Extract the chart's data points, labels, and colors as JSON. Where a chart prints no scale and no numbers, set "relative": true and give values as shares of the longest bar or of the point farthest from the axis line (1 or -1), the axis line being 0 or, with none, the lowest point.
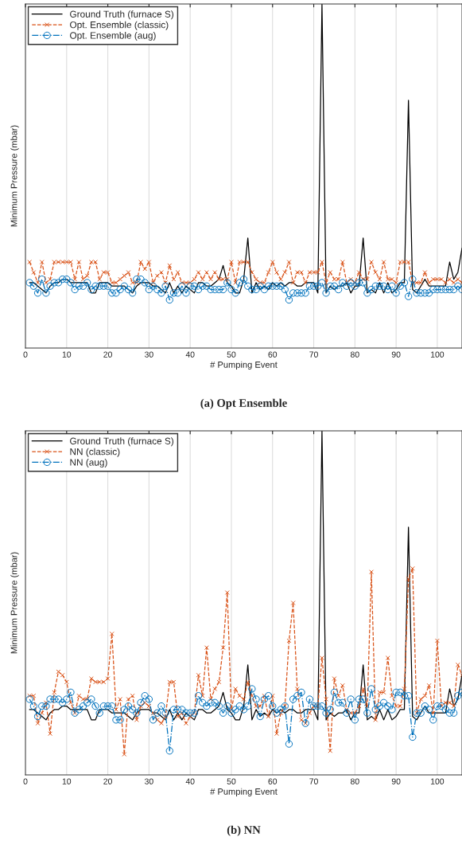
{
  "chart_data": [
    {
      "type": "line",
      "title": "(a) Opt Ensemble",
      "xlabel": "# Pumping Event",
      "ylabel": "Minimum Pressure (mbar)",
      "relative": true,
      "grid": "x",
      "legend": "top left",
      "xlim": [
        0,
        106
      ],
      "xticks": [
        0,
        10,
        20,
        30,
        40,
        50,
        60,
        70,
        80,
        90,
        100
      ],
      "x": [
        1,
        2,
        3,
        4,
        5,
        6,
        7,
        8,
        9,
        10,
        11,
        12,
        13,
        14,
        15,
        16,
        17,
        18,
        19,
        20,
        21,
        22,
        23,
        24,
        25,
        26,
        27,
        28,
        29,
        30,
        31,
        32,
        33,
        34,
        35,
        36,
        37,
        38,
        39,
        40,
        41,
        42,
        43,
        44,
        45,
        46,
        47,
        48,
        49,
        50,
        51,
        52,
        53,
        54,
        55,
        56,
        57,
        58,
        59,
        60,
        61,
        62,
        63,
        64,
        65,
        66,
        67,
        68,
        69,
        70,
        71,
        72,
        73,
        74,
        75,
        76,
        77,
        78,
        79,
        80,
        81,
        82,
        83,
        84,
        85,
        86,
        87,
        88,
        89,
        90,
        91,
        92,
        93,
        94,
        95,
        96,
        97,
        98,
        99,
        100,
        101,
        102,
        103,
        104,
        105,
        106
      ],
      "series": [
        {
          "name": "Ground Truth (furnace S)",
          "color": "#000000",
          "marker": "none",
          "line_style": "solid",
          "values": [
            0.19,
            0.19,
            0.18,
            0.17,
            0.16,
            0.18,
            0.19,
            0.19,
            0.2,
            0.2,
            0.19,
            0.19,
            0.19,
            0.19,
            0.19,
            0.16,
            0.16,
            0.19,
            0.19,
            0.19,
            0.18,
            0.18,
            0.18,
            0.18,
            0.17,
            0.16,
            0.18,
            0.19,
            0.19,
            0.19,
            0.18,
            0.18,
            0.17,
            0.16,
            0.19,
            0.16,
            0.18,
            0.16,
            0.18,
            0.17,
            0.16,
            0.19,
            0.19,
            0.18,
            0.18,
            0.19,
            0.2,
            0.24,
            0.19,
            0.18,
            0.16,
            0.16,
            0.2,
            0.32,
            0.16,
            0.19,
            0.17,
            0.18,
            0.17,
            0.19,
            0.18,
            0.19,
            0.18,
            0.19,
            0.19,
            0.18,
            0.18,
            0.19,
            0.19,
            0.19,
            0.16,
            1,
            0.16,
            0.18,
            0.17,
            0.18,
            0.18,
            0.19,
            0.16,
            0.18,
            0.18,
            0.32,
            0.16,
            0.17,
            0.16,
            0.19,
            0.16,
            0.19,
            0.16,
            0.17,
            0.19,
            0.19,
            0.72,
            0.17,
            0.16,
            0.18,
            0.2,
            0.18,
            0.18,
            0.18,
            0.18,
            0.18,
            0.25,
            0.2,
            0.22,
            0.29
          ]
        },
        {
          "name": "Opt. Ensemble (classic)",
          "color": "#d95319",
          "marker": "cross",
          "line_style": "dashed",
          "values": [
            0.25,
            0.22,
            0.19,
            0.25,
            0.19,
            0.2,
            0.25,
            0.25,
            0.25,
            0.25,
            0.25,
            0.2,
            0.25,
            0.2,
            0.21,
            0.25,
            0.25,
            0.2,
            0.22,
            0.22,
            0.19,
            0.19,
            0.2,
            0.21,
            0.22,
            0.19,
            0.19,
            0.25,
            0.23,
            0.25,
            0.19,
            0.21,
            0.22,
            0.19,
            0.24,
            0.2,
            0.22,
            0.19,
            0.19,
            0.19,
            0.2,
            0.22,
            0.2,
            0.22,
            0.2,
            0.22,
            0.2,
            0.2,
            0.2,
            0.25,
            0.19,
            0.25,
            0.25,
            0.25,
            0.22,
            0.2,
            0.19,
            0.19,
            0.22,
            0.25,
            0.22,
            0.2,
            0.22,
            0.25,
            0.19,
            0.22,
            0.22,
            0.19,
            0.22,
            0.22,
            0.22,
            0.25,
            0.19,
            0.22,
            0.2,
            0.2,
            0.25,
            0.19,
            0.2,
            0.19,
            0.22,
            0.2,
            0.2,
            0.25,
            0.22,
            0.2,
            0.25,
            0.2,
            0.2,
            0.19,
            0.25,
            0.25,
            0.25,
            0.19,
            0.19,
            0.19,
            0.22,
            0.19,
            0.2,
            0.2,
            0.2,
            0.19,
            0.2,
            0.19,
            0.2,
            0.19
          ]
        },
        {
          "name": "Opt. Ensemble (aug)",
          "color": "#0072bd",
          "marker": "circle",
          "line_style": "dashdot",
          "values": [
            0.19,
            0.18,
            0.16,
            0.2,
            0.16,
            0.18,
            0.19,
            0.19,
            0.2,
            0.2,
            0.19,
            0.17,
            0.18,
            0.18,
            0.19,
            0.17,
            0.18,
            0.18,
            0.18,
            0.18,
            0.16,
            0.16,
            0.17,
            0.18,
            0.17,
            0.16,
            0.2,
            0.2,
            0.19,
            0.17,
            0.18,
            0.17,
            0.16,
            0.18,
            0.14,
            0.16,
            0.16,
            0.18,
            0.16,
            0.18,
            0.18,
            0.17,
            0.18,
            0.18,
            0.17,
            0.17,
            0.17,
            0.17,
            0.19,
            0.17,
            0.16,
            0.19,
            0.2,
            0.18,
            0.17,
            0.17,
            0.18,
            0.17,
            0.18,
            0.18,
            0.18,
            0.18,
            0.17,
            0.14,
            0.16,
            0.16,
            0.16,
            0.16,
            0.18,
            0.18,
            0.18,
            0.19,
            0.16,
            0.18,
            0.18,
            0.17,
            0.19,
            0.18,
            0.19,
            0.18,
            0.19,
            0.19,
            0.16,
            0.17,
            0.18,
            0.18,
            0.18,
            0.17,
            0.18,
            0.16,
            0.18,
            0.19,
            0.15,
            0.2,
            0.16,
            0.16,
            0.16,
            0.16,
            0.17,
            0.17,
            0.17,
            0.17,
            0.17,
            0.17,
            0.18,
            0.17
          ]
        }
      ]
    },
    {
      "type": "line",
      "title": "(b) NN",
      "xlabel": "# Pumping Event",
      "ylabel": "Minimum Pressure (mbar)",
      "relative": true,
      "grid": "x",
      "legend": "top left",
      "xlim": [
        0,
        106
      ],
      "xticks": [
        0,
        10,
        20,
        30,
        40,
        50,
        60,
        70,
        80,
        90,
        100
      ],
      "x": [
        1,
        2,
        3,
        4,
        5,
        6,
        7,
        8,
        9,
        10,
        11,
        12,
        13,
        14,
        15,
        16,
        17,
        18,
        19,
        20,
        21,
        22,
        23,
        24,
        25,
        26,
        27,
        28,
        29,
        30,
        31,
        32,
        33,
        34,
        35,
        36,
        37,
        38,
        39,
        40,
        41,
        42,
        43,
        44,
        45,
        46,
        47,
        48,
        49,
        50,
        51,
        52,
        53,
        54,
        55,
        56,
        57,
        58,
        59,
        60,
        61,
        62,
        63,
        64,
        65,
        66,
        67,
        68,
        69,
        70,
        71,
        72,
        73,
        74,
        75,
        76,
        77,
        78,
        79,
        80,
        81,
        82,
        83,
        84,
        85,
        86,
        87,
        88,
        89,
        90,
        91,
        92,
        93,
        94,
        95,
        96,
        97,
        98,
        99,
        100,
        101,
        102,
        103,
        104,
        105,
        106
      ],
      "series": [
        {
          "name": "Ground Truth (furnace S)",
          "color": "#000000",
          "marker": "none",
          "line_style": "solid",
          "values": [
            0.19,
            0.19,
            0.18,
            0.17,
            0.16,
            0.18,
            0.19,
            0.19,
            0.2,
            0.2,
            0.19,
            0.19,
            0.19,
            0.19,
            0.19,
            0.16,
            0.16,
            0.19,
            0.19,
            0.19,
            0.18,
            0.18,
            0.18,
            0.18,
            0.17,
            0.16,
            0.18,
            0.19,
            0.19,
            0.19,
            0.18,
            0.18,
            0.17,
            0.16,
            0.19,
            0.16,
            0.18,
            0.16,
            0.18,
            0.17,
            0.16,
            0.19,
            0.19,
            0.18,
            0.18,
            0.19,
            0.2,
            0.24,
            0.19,
            0.18,
            0.16,
            0.16,
            0.2,
            0.32,
            0.16,
            0.19,
            0.17,
            0.18,
            0.17,
            0.19,
            0.18,
            0.19,
            0.18,
            0.19,
            0.19,
            0.18,
            0.18,
            0.19,
            0.19,
            0.19,
            0.16,
            1,
            0.16,
            0.18,
            0.17,
            0.18,
            0.18,
            0.19,
            0.16,
            0.18,
            0.18,
            0.32,
            0.16,
            0.17,
            0.16,
            0.19,
            0.16,
            0.19,
            0.16,
            0.17,
            0.19,
            0.19,
            0.72,
            0.17,
            0.16,
            0.18,
            0.2,
            0.18,
            0.18,
            0.18,
            0.18,
            0.18,
            0.25,
            0.2,
            0.22,
            0.29
          ]
        },
        {
          "name": "NN (classic)",
          "color": "#d95319",
          "marker": "cross",
          "line_style": "dashed",
          "values": [
            0.23,
            0.23,
            0.15,
            0.18,
            0.21,
            0.12,
            0.24,
            0.3,
            0.29,
            0.27,
            0.21,
            0.18,
            0.23,
            0.22,
            0.22,
            0.28,
            0.27,
            0.27,
            0.27,
            0.28,
            0.41,
            0.19,
            0.22,
            0.06,
            0.22,
            0.23,
            0.16,
            0.2,
            0.21,
            0.2,
            0.18,
            0.16,
            0.15,
            0.17,
            0.27,
            0.27,
            0.17,
            0.18,
            0.15,
            0.17,
            0.18,
            0.29,
            0.23,
            0.37,
            0.22,
            0.25,
            0.27,
            0.37,
            0.53,
            0.19,
            0.25,
            0.23,
            0.22,
            0.27,
            0.23,
            0.2,
            0.2,
            0.23,
            0.17,
            0.23,
            0.12,
            0.18,
            0.2,
            0.39,
            0.5,
            0.25,
            0.16,
            0.15,
            0.18,
            0.2,
            0.2,
            0.34,
            0.22,
            0.07,
            0.28,
            0.23,
            0.26,
            0.19,
            0.18,
            0.18,
            0.2,
            0.25,
            0.2,
            0.59,
            0.16,
            0.24,
            0.24,
            0.34,
            0.23,
            0.2,
            0.2,
            0.25,
            0.57,
            0.6,
            0.18,
            0.22,
            0.23,
            0.26,
            0.18,
            0.39,
            0.2,
            0.21,
            0.21,
            0.2,
            0.32,
            0.29
          ]
        },
        {
          "name": "NN (aug)",
          "color": "#0072bd",
          "marker": "circle",
          "line_style": "dashdot",
          "values": [
            0.22,
            0.2,
            0.17,
            0.2,
            0.2,
            0.22,
            0.22,
            0.22,
            0.21,
            0.22,
            0.24,
            0.18,
            0.19,
            0.2,
            0.21,
            0.22,
            0.2,
            0.18,
            0.2,
            0.2,
            0.2,
            0.16,
            0.16,
            0.19,
            0.2,
            0.19,
            0.18,
            0.21,
            0.23,
            0.22,
            0.16,
            0.18,
            0.2,
            0.18,
            0.07,
            0.19,
            0.19,
            0.19,
            0.18,
            0.18,
            0.18,
            0.23,
            0.21,
            0.2,
            0.21,
            0.21,
            0.2,
            0.18,
            0.2,
            0.18,
            0.19,
            0.2,
            0.19,
            0.2,
            0.25,
            0.22,
            0.17,
            0.22,
            0.23,
            0.2,
            0.18,
            0.19,
            0.2,
            0.09,
            0.22,
            0.23,
            0.24,
            0.15,
            0.22,
            0.2,
            0.2,
            0.2,
            0.18,
            0.19,
            0.24,
            0.21,
            0.21,
            0.18,
            0.22,
            0.16,
            0.22,
            0.22,
            0.18,
            0.25,
            0.19,
            0.2,
            0.21,
            0.2,
            0.19,
            0.24,
            0.24,
            0.23,
            0.23,
            0.11,
            0.18,
            0.18,
            0.2,
            0.19,
            0.16,
            0.2,
            0.2,
            0.19,
            0.18,
            0.18,
            0.23,
            0.24
          ]
        }
      ]
    }
  ]
}
